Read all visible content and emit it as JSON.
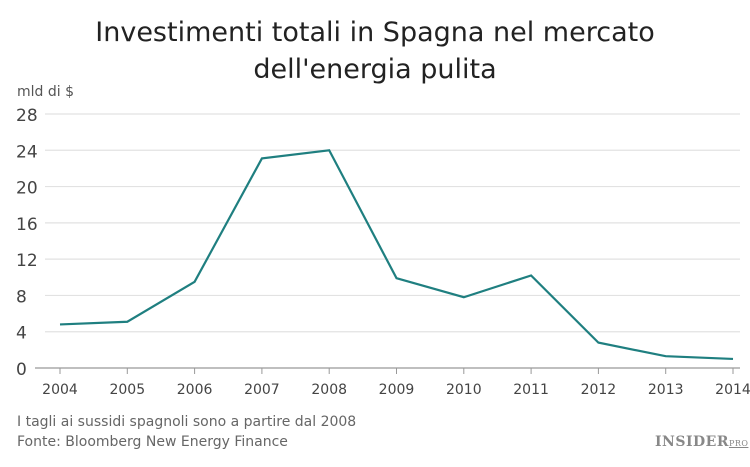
{
  "chart_data": {
    "type": "line",
    "title": "Investimenti totali in Spagna nel mercato dell'energia pulita",
    "title_lines": [
      "Investimenti totali in Spagna nel mercato",
      "dell'energia pulita"
    ],
    "ylabel": "mld di $",
    "xlabel": "",
    "x": [
      "2004",
      "2005",
      "2006",
      "2007",
      "2008",
      "2009",
      "2010",
      "2011",
      "2012",
      "2013",
      "2014"
    ],
    "series": [
      {
        "values": [
          4.8,
          5.1,
          9.5,
          23.1,
          24.0,
          9.9,
          7.8,
          10.2,
          2.8,
          1.3,
          1.0
        ],
        "color": "#1f7f80"
      }
    ],
    "yticks": [
      0,
      4,
      8,
      12,
      16,
      20,
      24,
      28
    ],
    "ylim": [
      0,
      28
    ],
    "grid": true,
    "legend": "none"
  },
  "footer": {
    "note": "I tagli ai sussidi spagnoli sono a partire dal 2008",
    "source": "Fonte: Bloomberg New Energy Finance",
    "logo": "INSIDER",
    "logo_sub": "PRO"
  }
}
